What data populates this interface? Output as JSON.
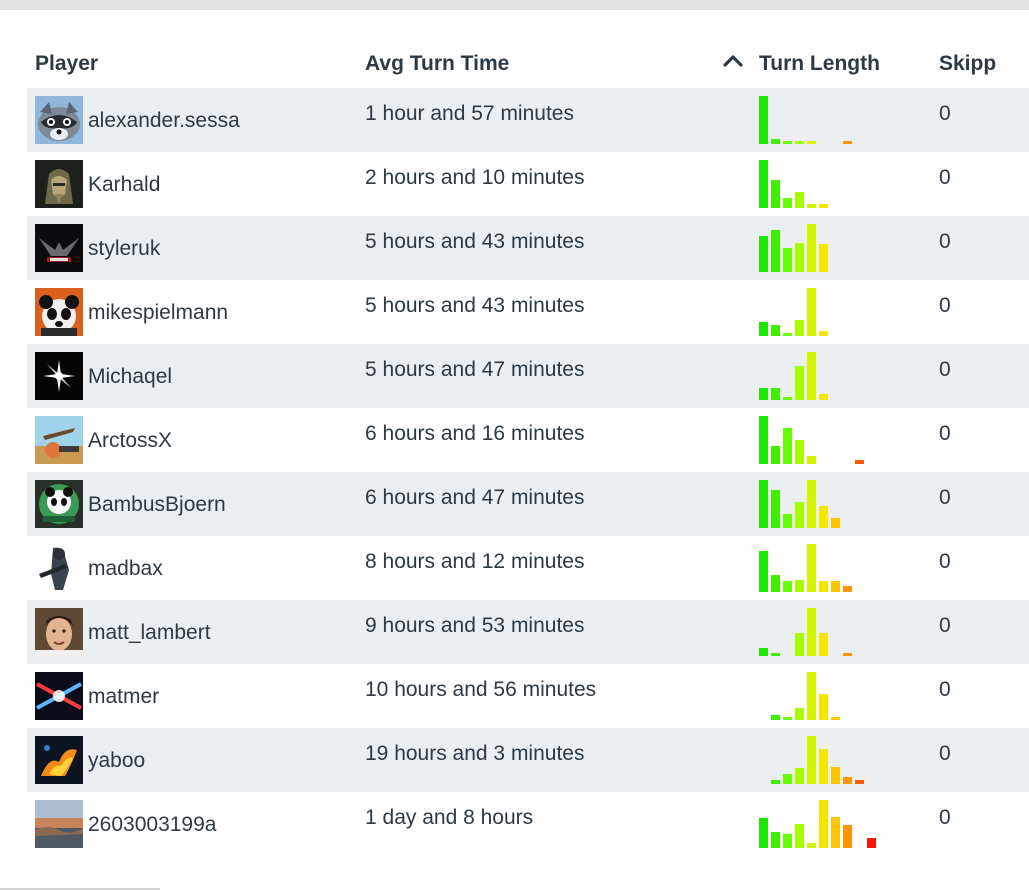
{
  "table": {
    "headers": {
      "player": "Player",
      "avg_turn_time": "Avg Turn Time",
      "turn_length": "Turn Length",
      "skipped": "Skipp"
    },
    "sort": {
      "column": "turn_length",
      "direction": "ascending",
      "icon": "chevron-up-icon"
    },
    "rows": [
      {
        "name": "alexander.sessa",
        "avg": "1 hour and 57 minutes",
        "skipped": "0",
        "avatar_icon": "raccoon-avatar",
        "hist": [
          1.0,
          0.1,
          0.06,
          0.06,
          0.06,
          0,
          0,
          0.06,
          0,
          0
        ]
      },
      {
        "name": "Karhald",
        "avg": "2 hours and 10 minutes",
        "skipped": "0",
        "avatar_icon": "warrior-avatar",
        "hist": [
          1.0,
          0.58,
          0.2,
          0.33,
          0.08,
          0.08,
          0,
          0,
          0,
          0
        ]
      },
      {
        "name": "styleruk",
        "avg": "5 hours and 43 minutes",
        "skipped": "0",
        "avatar_icon": "emblem-avatar",
        "hist": [
          0.75,
          0.87,
          0.5,
          0.6,
          1.0,
          0.58,
          0,
          0,
          0,
          0
        ]
      },
      {
        "name": "mikespielmann",
        "avg": "5 hours and 43 minutes",
        "skipped": "0",
        "avatar_icon": "panda-avatar",
        "hist": [
          0.3,
          0.23,
          0.06,
          0.34,
          1.0,
          0.1,
          0,
          0,
          0,
          0
        ]
      },
      {
        "name": "Michaqel",
        "avg": "5 hours and 47 minutes",
        "skipped": "0",
        "avatar_icon": "star-flare-avatar",
        "hist": [
          0.25,
          0.25,
          0.06,
          0.7,
          1.0,
          0.12,
          0,
          0,
          0,
          0
        ]
      },
      {
        "name": "ArctossX",
        "avg": "6 hours and 16 minutes",
        "skipped": "0",
        "avatar_icon": "artwork-avatar",
        "hist": [
          1.0,
          0.38,
          0.75,
          0.5,
          0.17,
          0,
          0,
          0,
          0.08,
          0
        ]
      },
      {
        "name": "BambusBjoern",
        "avg": "6 hours and 47 minutes",
        "skipped": "0",
        "avatar_icon": "panda-logo-avatar",
        "hist": [
          1.0,
          0.8,
          0.3,
          0.55,
          1.0,
          0.45,
          0.2,
          0,
          0,
          0
        ]
      },
      {
        "name": "madbax",
        "avg": "8 hours and 12 minutes",
        "skipped": "0",
        "avatar_icon": "soldier-avatar",
        "hist": [
          0.85,
          0.35,
          0.22,
          0.25,
          1.0,
          0.22,
          0.22,
          0.12,
          0,
          0
        ]
      },
      {
        "name": "matt_lambert",
        "avg": "9 hours and 53 minutes",
        "skipped": "0",
        "avatar_icon": "face-avatar",
        "hist": [
          0.17,
          0.04,
          0,
          0.47,
          1.0,
          0.47,
          0,
          0.06,
          0,
          0
        ]
      },
      {
        "name": "matmer",
        "avg": "10 hours and 56 minutes",
        "skipped": "0",
        "avatar_icon": "laser-avatar",
        "hist": [
          0,
          0.1,
          0.04,
          0.24,
          1.0,
          0.55,
          0.04,
          0,
          0,
          0
        ]
      },
      {
        "name": "yaboo",
        "avg": "19 hours and 3 minutes",
        "skipped": "0",
        "avatar_icon": "fire-avatar",
        "hist": [
          0,
          0.08,
          0.2,
          0.33,
          1.0,
          0.73,
          0.35,
          0.15,
          0.08,
          0
        ]
      },
      {
        "name": "2603003199a",
        "avg": "1 day and 8 hours",
        "skipped": "0",
        "avatar_icon": "landscape-avatar",
        "hist": [
          0.62,
          0.33,
          0.3,
          0.51,
          0.1,
          1.0,
          0.65,
          0.47,
          0,
          0.2
        ]
      }
    ]
  },
  "colors": {
    "row_alt_bg": "#ebeff1",
    "text": "#2d3a45",
    "hist_bins": [
      "#1fe600",
      "#3ef000",
      "#66ff00",
      "#a6ff00",
      "#d4f500",
      "#f5e600",
      "#ffc400",
      "#ff9500",
      "#ff5a00",
      "#ff1400"
    ]
  }
}
